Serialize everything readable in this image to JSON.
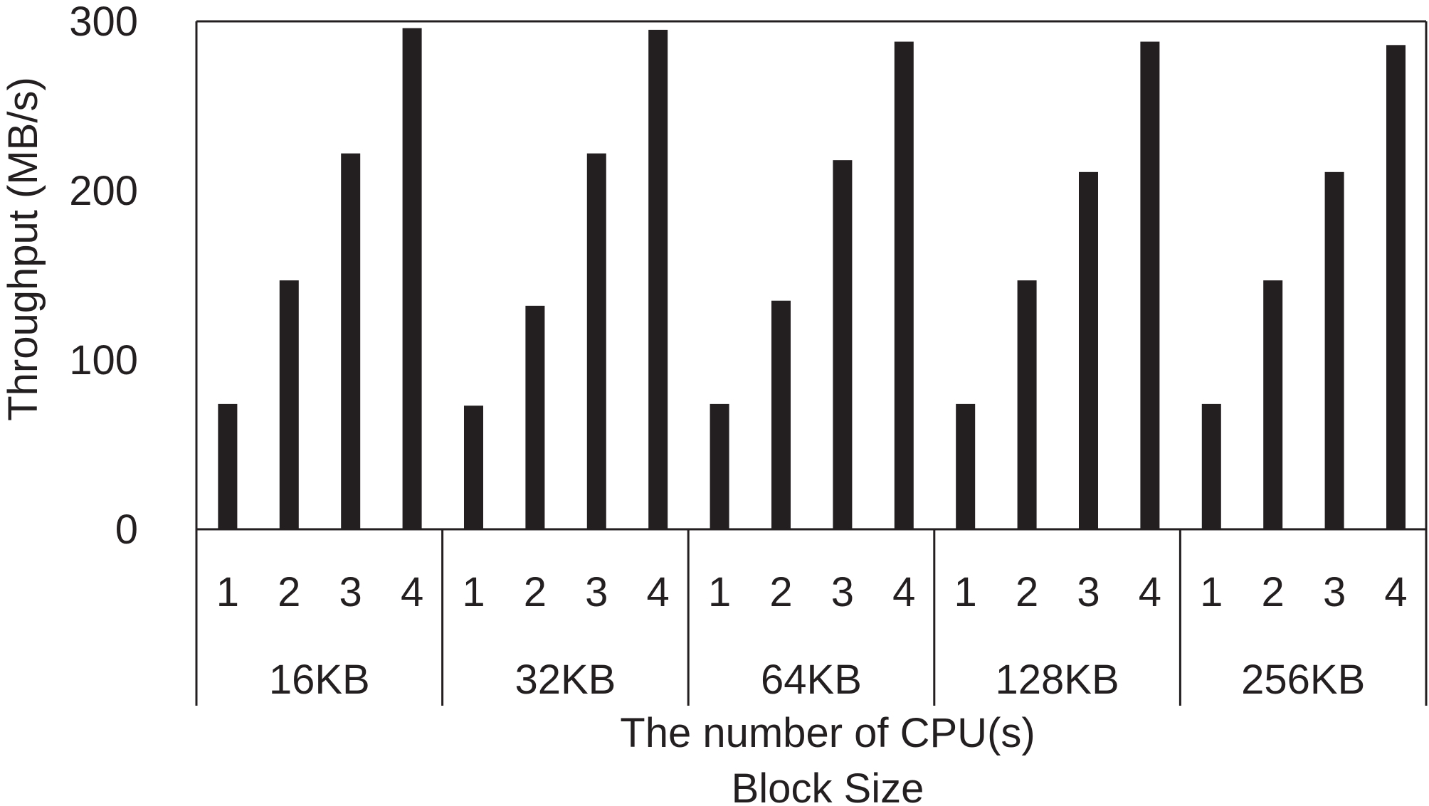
{
  "chart_data": {
    "type": "bar",
    "title": "",
    "ylabel": "Throughput (MB/s)",
    "xlabel_primary": "The number of CPU(s)",
    "xlabel_secondary": "Block Size",
    "ylim": [
      0,
      300
    ],
    "yticks": [
      0,
      100,
      200,
      300
    ],
    "grid": false,
    "groups": [
      {
        "label": "16KB",
        "cpus": [
          "1",
          "2",
          "3",
          "4"
        ],
        "values": [
          74,
          147,
          222,
          296
        ]
      },
      {
        "label": "32KB",
        "cpus": [
          "1",
          "2",
          "3",
          "4"
        ],
        "values": [
          73,
          132,
          222,
          295
        ]
      },
      {
        "label": "64KB",
        "cpus": [
          "1",
          "2",
          "3",
          "4"
        ],
        "values": [
          74,
          135,
          218,
          288
        ]
      },
      {
        "label": "128KB",
        "cpus": [
          "1",
          "2",
          "3",
          "4"
        ],
        "values": [
          74,
          147,
          211,
          288
        ]
      },
      {
        "label": "256KB",
        "cpus": [
          "1",
          "2",
          "3",
          "4"
        ],
        "values": [
          74,
          147,
          211,
          286
        ]
      }
    ],
    "colors": {
      "bar": "#231f20",
      "axis": "#231f20"
    }
  }
}
